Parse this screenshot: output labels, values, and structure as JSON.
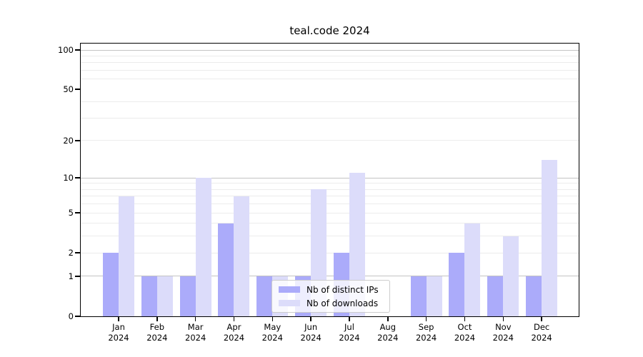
{
  "title": "teal.code 2024",
  "chart_data": {
    "type": "bar",
    "title": "teal.code 2024",
    "categories": [
      "Jan 2024",
      "Feb 2024",
      "Mar 2024",
      "Apr 2024",
      "May 2024",
      "Jun 2024",
      "Jul 2024",
      "Aug 2024",
      "Sep 2024",
      "Oct 2024",
      "Nov 2024",
      "Dec 2024"
    ],
    "months": [
      "Jan",
      "Feb",
      "Mar",
      "Apr",
      "May",
      "Jun",
      "Jul",
      "Aug",
      "Sep",
      "Oct",
      "Nov",
      "Dec"
    ],
    "year": "2024",
    "series": [
      {
        "name": "Nb of distinct IPs",
        "key": "distinct-ips",
        "color": "#ababfa",
        "values": [
          2,
          1,
          1,
          4,
          1,
          1,
          2,
          0,
          1,
          2,
          1,
          1
        ]
      },
      {
        "name": "Nb of downloads",
        "key": "downloads",
        "color": "#dcdcfa",
        "values": [
          7,
          1,
          10,
          7,
          1,
          8,
          11,
          0,
          1,
          4,
          3,
          14
        ]
      }
    ],
    "xlabel": "",
    "ylabel": "",
    "yscale": "log1p",
    "ylim": [
      0,
      113
    ],
    "ytick_values": [
      100,
      50,
      20,
      10,
      5,
      2,
      1,
      0
    ],
    "ytick_labels": [
      "100",
      "50",
      "20",
      "10",
      "5",
      "2",
      "1",
      "0"
    ],
    "major_grid_values": [
      1,
      10,
      100
    ],
    "minor_grid_values": [
      2,
      3,
      4,
      5,
      6,
      7,
      8,
      9,
      20,
      30,
      40,
      60,
      70,
      80,
      90
    ],
    "grid": "on",
    "legend_position": "lower center",
    "colors": {
      "major_grid": "#c3c3c3",
      "minor_grid": "#ececec",
      "spine": "#000000",
      "background": "#ffffff"
    }
  }
}
